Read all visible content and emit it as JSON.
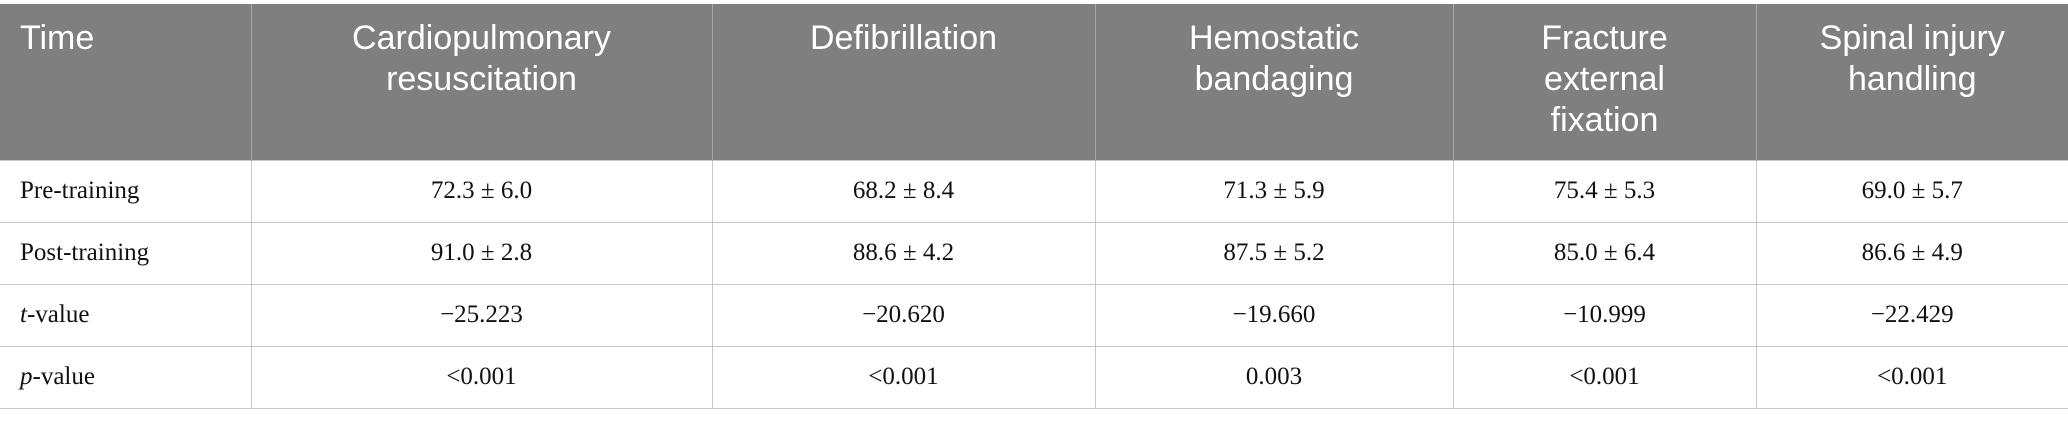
{
  "table": {
    "header": [
      "Time",
      "Cardiopulmonary resuscitation",
      "Defibrillation",
      "Hemostatic bandaging",
      "Fracture external fixation",
      "Spinal injury handling"
    ],
    "rows": [
      [
        {
          "text": "Pre-training"
        },
        "72.3 ± 6.0",
        "68.2 ± 8.4",
        "71.3 ± 5.9",
        "75.4 ± 5.3",
        "69.0 ± 5.7"
      ],
      [
        {
          "text": "Post-training"
        },
        "91.0 ± 2.8",
        "88.6 ± 4.2",
        "87.5 ± 5.2",
        "85.0 ± 6.4",
        "86.6 ± 4.9"
      ],
      [
        {
          "italic": "t",
          "text": "-value"
        },
        "−25.223",
        "−20.620",
        "−19.660",
        "−10.999",
        "−22.429"
      ],
      [
        {
          "italic": "p",
          "text": "-value"
        },
        "<0.001",
        "<0.001",
        "0.003",
        "<0.001",
        "<0.001"
      ]
    ]
  }
}
